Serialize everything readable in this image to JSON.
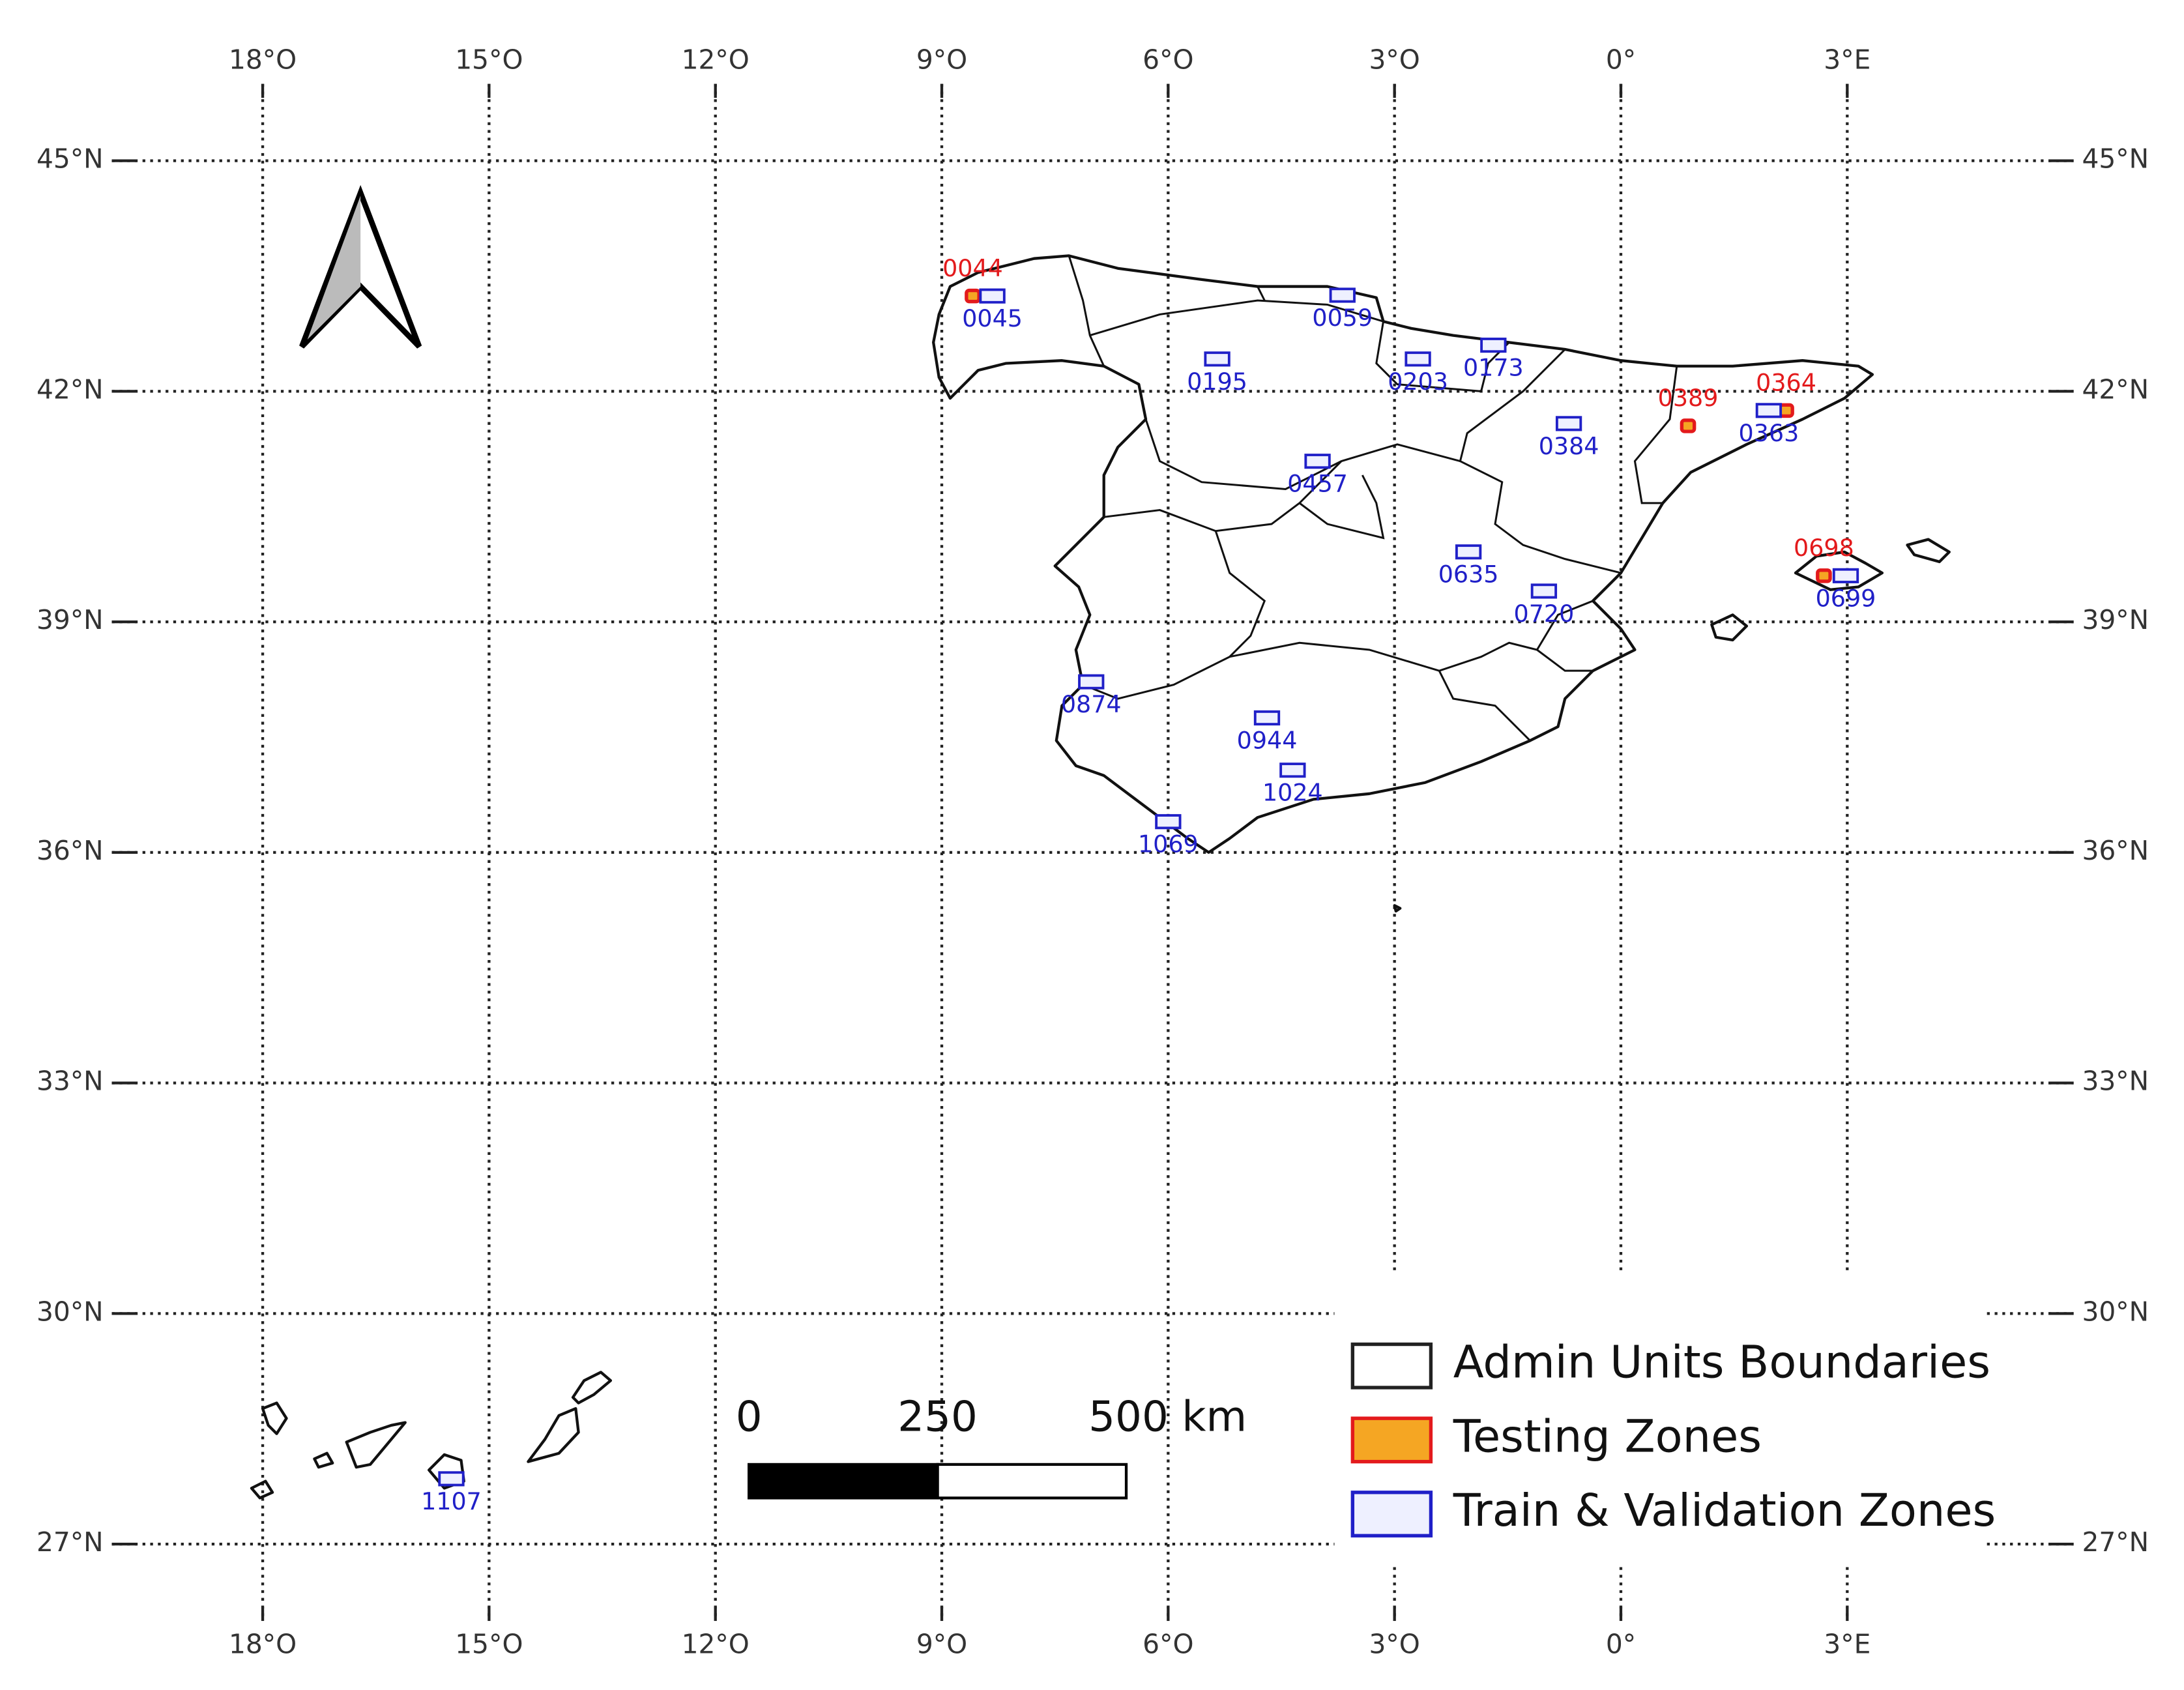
{
  "graticule": {
    "lon_range": [
      -20,
      6
    ],
    "lat_range": [
      26,
      46
    ],
    "lon_ticks": [
      {
        "value": -18,
        "label": "18°O"
      },
      {
        "value": -15,
        "label": "15°O"
      },
      {
        "value": -12,
        "label": "12°O"
      },
      {
        "value": -9,
        "label": "9°O"
      },
      {
        "value": -6,
        "label": "6°O"
      },
      {
        "value": -3,
        "label": "3°O"
      },
      {
        "value": 0,
        "label": "0°"
      },
      {
        "value": 3,
        "label": "3°E"
      }
    ],
    "lat_ticks": [
      {
        "value": 45,
        "label": "45°N"
      },
      {
        "value": 42,
        "label": "42°N"
      },
      {
        "value": 39,
        "label": "39°N"
      },
      {
        "value": 36,
        "label": "36°N"
      },
      {
        "value": 33,
        "label": "33°N"
      },
      {
        "value": 30,
        "label": "30°N"
      },
      {
        "value": 27,
        "label": "27°N"
      }
    ]
  },
  "layers": [
    {
      "label": "Admin Units Boundaries",
      "fill": "#ffffff",
      "stroke": "#222222"
    },
    {
      "label": "Testing Zones",
      "fill": "#f5a623",
      "stroke": "#e31a1c",
      "zones": [
        {
          "label": "0044",
          "lon": -8.59,
          "lat": 43.24
        },
        {
          "label": "0389",
          "lon": 0.89,
          "lat": 41.55
        },
        {
          "label": "0364",
          "lon": 2.19,
          "lat": 41.75
        },
        {
          "label": "0698",
          "lon": 2.69,
          "lat": 39.6
        }
      ]
    },
    {
      "label": "Train & Validation Zones",
      "fill": "#eef0ff",
      "stroke": "#2020c8",
      "zones": [
        {
          "label": "0045",
          "lon": -8.33,
          "lat": 43.24
        },
        {
          "label": "0059",
          "lon": -3.69,
          "lat": 43.25
        },
        {
          "label": "0195",
          "lon": -5.35,
          "lat": 42.42
        },
        {
          "label": "0203",
          "lon": -2.69,
          "lat": 42.42
        },
        {
          "label": "0173",
          "lon": -1.69,
          "lat": 42.6
        },
        {
          "label": "0384",
          "lon": -0.69,
          "lat": 41.58
        },
        {
          "label": "0363",
          "lon": 1.96,
          "lat": 41.75
        },
        {
          "label": "0457",
          "lon": -4.02,
          "lat": 41.09
        },
        {
          "label": "0635",
          "lon": -2.02,
          "lat": 39.91
        },
        {
          "label": "0720",
          "lon": -1.02,
          "lat": 39.4
        },
        {
          "label": "0699",
          "lon": 2.98,
          "lat": 39.6
        },
        {
          "label": "0874",
          "lon": -7.02,
          "lat": 38.22
        },
        {
          "label": "0944",
          "lon": -4.69,
          "lat": 37.75
        },
        {
          "label": "1024",
          "lon": -4.35,
          "lat": 37.07
        },
        {
          "label": "1069",
          "lon": -6.0,
          "lat": 36.4
        },
        {
          "label": "1107",
          "lon": -15.5,
          "lat": 27.85
        }
      ]
    }
  ],
  "scale_bar": {
    "ticks": [
      {
        "value": 0,
        "label": "0"
      },
      {
        "value": 250,
        "label": "250"
      },
      {
        "value": 500,
        "label": "500 km"
      }
    ]
  }
}
